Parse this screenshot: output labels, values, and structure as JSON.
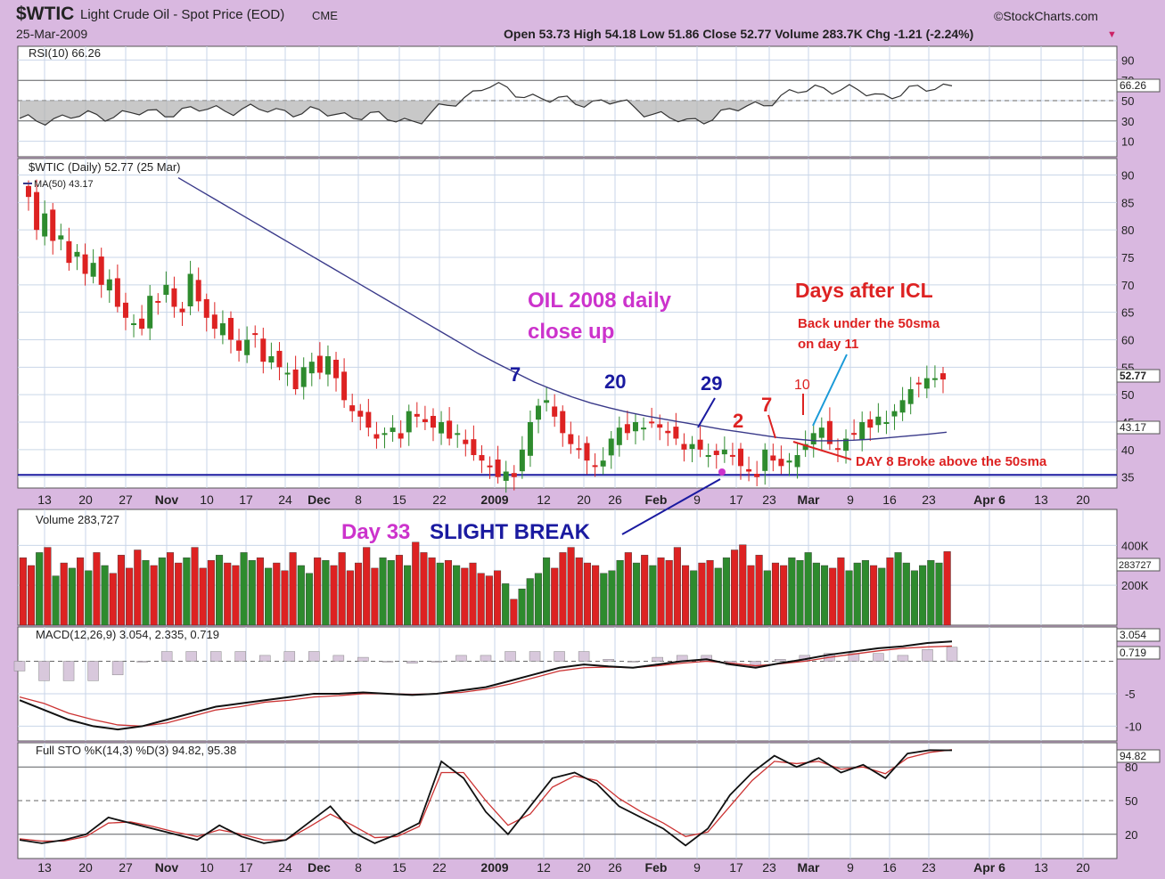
{
  "header": {
    "symbol": "$WTIC",
    "name": "Light Crude Oil - Spot Price (EOD)",
    "exchange": "CME",
    "date": "25-Mar-2009",
    "source": "©StockCharts.com",
    "ohlc_label": "Open 53.73  High 54.18  Low 51.86  Close 52.77  Volume 283.7K  Chg -1.21 (-2.24%)",
    "down_arrow": "▼"
  },
  "colors": {
    "background": "#d9b8e0",
    "up": "#2e8b2e",
    "down": "#dd2222",
    "ma": "#3a3a8a",
    "annotation_blue": "#1a1aa0",
    "annotation_red": "#dd2222",
    "annotation_magenta": "#cc33cc",
    "callout_cyan": "#1a9ad8"
  },
  "chart_data": [
    {
      "type": "line",
      "panel": "rsi",
      "title": "RSI(10) 66.26",
      "last_value": 66.26,
      "last_label": "66.26",
      "ylim": [
        0,
        100
      ],
      "yticks": [
        10,
        30,
        50,
        70,
        90
      ],
      "reference_lines": [
        30,
        50,
        70
      ],
      "x": [
        "2008-10-06",
        "2008-10-20",
        "2008-11-03",
        "2008-11-17",
        "2008-12-01",
        "2008-12-15",
        "2008-12-29",
        "2009-01-05",
        "2009-01-19",
        "2009-02-02",
        "2009-02-12",
        "2009-02-18",
        "2009-03-02",
        "2009-03-09",
        "2009-03-25"
      ],
      "values": [
        30,
        35,
        38,
        42,
        40,
        36,
        30,
        65,
        50,
        48,
        28,
        45,
        64,
        55,
        66.26
      ]
    },
    {
      "type": "candlestick",
      "panel": "price",
      "title": "$WTIC (Daily) 52.77 (25 Mar)",
      "last_label": "52.77",
      "ma_label": "MA(50) 43.17",
      "ma_value_label": "43.17",
      "ylim": [
        33,
        93
      ],
      "yticks": [
        35,
        40,
        45,
        50,
        55,
        60,
        65,
        70,
        75,
        80,
        85,
        90
      ],
      "support_line": 35.4,
      "candles_close": [
        86,
        80,
        83,
        78,
        79,
        74,
        76,
        72,
        74,
        70,
        71,
        66,
        64,
        63,
        62,
        68,
        67,
        70,
        66,
        65,
        72,
        67,
        64,
        62,
        63,
        60,
        58,
        60,
        61,
        56,
        57,
        55,
        54,
        51,
        55,
        56,
        54,
        57,
        53,
        49,
        47,
        46,
        44,
        42,
        43,
        44,
        42,
        47,
        46,
        45,
        44,
        45,
        42,
        43,
        41,
        39,
        38,
        37,
        35,
        36,
        35,
        40,
        45,
        48,
        49,
        46,
        43,
        41,
        40,
        38,
        37,
        38,
        42,
        44,
        43,
        45,
        44,
        45,
        44,
        43,
        42,
        40,
        41,
        40,
        39,
        39,
        40,
        39,
        37,
        36,
        35,
        40,
        38,
        37,
        38,
        39,
        41,
        43,
        44,
        41,
        40,
        42,
        43,
        45,
        44,
        46,
        45,
        47,
        49,
        51,
        52,
        53,
        53,
        52.77
      ],
      "ma_start_x": 200,
      "ma_values": [
        89.5,
        87.5,
        85.5,
        83.5,
        81.5,
        79.5,
        77.5,
        75.5,
        73.5,
        71.5,
        69.5,
        67.5,
        65.5,
        63.5,
        61.5,
        59.5,
        57.5,
        55.7,
        54.0,
        52.3,
        50.9,
        49.6,
        48.5,
        47.6,
        46.8,
        46.1,
        45.5,
        44.9,
        44.3,
        43.7,
        43.2,
        42.7,
        42.2,
        41.9,
        41.6,
        41.6,
        41.7,
        41.9,
        42.2,
        42.5,
        42.8,
        43.17
      ]
    },
    {
      "type": "bar",
      "panel": "volume",
      "title": "Volume 283,727",
      "ylim": [
        0,
        580000
      ],
      "yticks": [
        200000,
        400000
      ],
      "ytick_labels": [
        "200K",
        "400K"
      ],
      "last_label": "283727",
      "values": [
        260,
        230,
        280,
        300,
        190,
        240,
        220,
        260,
        210,
        280,
        230,
        200,
        270,
        220,
        290,
        250,
        230,
        260,
        280,
        240,
        260,
        300,
        220,
        250,
        270,
        240,
        230,
        280,
        250,
        260,
        220,
        240,
        210,
        280,
        230,
        200,
        260,
        250,
        230,
        280,
        210,
        240,
        300,
        220,
        260,
        250,
        270,
        230,
        320,
        280,
        260,
        240,
        250,
        230,
        220,
        240,
        200,
        190,
        210,
        160,
        100,
        140,
        180,
        200,
        260,
        220,
        280,
        300,
        260,
        240,
        230,
        200,
        210,
        250,
        280,
        240,
        270,
        230,
        260,
        250,
        300,
        230,
        210,
        240,
        250,
        220,
        260,
        290,
        310,
        230,
        270,
        210,
        240,
        230,
        260,
        250,
        280,
        240,
        230,
        220,
        260,
        210,
        240,
        250,
        230,
        220,
        260,
        280,
        240,
        210,
        230,
        250,
        240,
        283.7
      ],
      "last_value": 283727
    },
    {
      "type": "line",
      "panel": "macd",
      "title": "MACD(12,26,9) 3.054, 2.335, 0.719",
      "ylim": [
        -12,
        5
      ],
      "yticks": [
        -10,
        -5
      ],
      "macd_label": "3.054",
      "hist_label": "0.719",
      "macd": [
        -6,
        -7.5,
        -9,
        -10,
        -10.5,
        -10,
        -9,
        -8,
        -7,
        -6.5,
        -6,
        -5.5,
        -5,
        -5,
        -4.8,
        -5,
        -5.2,
        -5,
        -4.5,
        -4,
        -3,
        -2,
        -1,
        -0.5,
        -0.8,
        -1,
        -0.5,
        0,
        0.3,
        -0.5,
        -1,
        -0.3,
        0.3,
        1,
        1.5,
        2,
        2.3,
        2.8,
        3.054
      ],
      "signal": [
        -5.5,
        -6.5,
        -8,
        -9,
        -9.8,
        -10,
        -9.5,
        -8.5,
        -7.5,
        -7,
        -6.3,
        -6,
        -5.5,
        -5.3,
        -5,
        -5,
        -5.1,
        -5,
        -4.8,
        -4.3,
        -3.5,
        -2.5,
        -1.5,
        -1,
        -0.9,
        -1,
        -0.7,
        -0.3,
        0,
        -0.3,
        -0.7,
        -0.4,
        0,
        0.6,
        1.1,
        1.6,
        2,
        2.2,
        2.335
      ]
    },
    {
      "type": "line",
      "panel": "stochastic",
      "title": "Full STO %K(14,3) %D(3) 94.82, 95.38",
      "ylim": [
        0,
        100
      ],
      "yticks": [
        20,
        50,
        80
      ],
      "k_label": "94.82",
      "k": [
        15,
        12,
        15,
        20,
        35,
        30,
        25,
        20,
        15,
        28,
        18,
        12,
        15,
        30,
        45,
        22,
        12,
        20,
        30,
        85,
        70,
        40,
        20,
        45,
        70,
        75,
        65,
        45,
        35,
        25,
        10,
        25,
        55,
        75,
        90,
        80,
        88,
        75,
        82,
        70,
        92,
        95,
        94.82
      ],
      "d": [
        16,
        14,
        14,
        18,
        30,
        31,
        27,
        22,
        18,
        24,
        20,
        15,
        15,
        26,
        38,
        28,
        17,
        18,
        27,
        75,
        75,
        50,
        28,
        38,
        62,
        72,
        68,
        52,
        40,
        30,
        18,
        22,
        45,
        68,
        85,
        83,
        85,
        78,
        80,
        74,
        88,
        93,
        95.38
      ]
    }
  ],
  "x_axis": {
    "tick_labels": [
      "13",
      "20",
      "27",
      "Nov",
      "10",
      "17",
      "24",
      "Dec",
      "8",
      "15",
      "22",
      "2009",
      "12",
      "20",
      "26",
      "Feb",
      "9",
      "17",
      "23",
      "Mar",
      "9",
      "16",
      "23",
      "Apr 6",
      "13",
      "20"
    ]
  },
  "annotations": {
    "oil_title_line1": "OIL 2008 daily",
    "oil_title_line2": "close up",
    "days_after": "Days after ICL",
    "back_under_line1": "Back under the 50sma",
    "back_under_line2": "on day 11",
    "day8": "DAY 8 Broke above the 50sma",
    "day33_a": "Day 33",
    "day33_b": "SLIGHT BREAK",
    "n7": "7",
    "n20": "20",
    "n29": "29",
    "r2": "2",
    "r7": "7",
    "r10": "10"
  }
}
